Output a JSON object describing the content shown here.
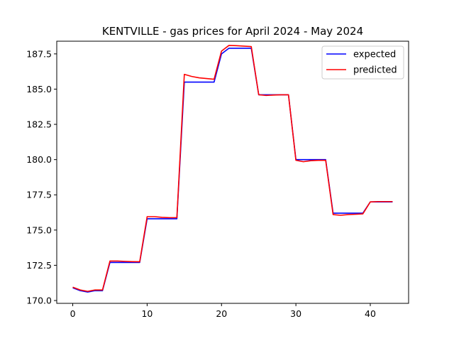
{
  "chart_data": {
    "type": "line",
    "title": "KENTVILLE - gas prices for April 2024 - May 2024",
    "xlabel": "",
    "ylabel": "",
    "xlim": [
      -2.15,
      45.15
    ],
    "ylim": [
      169.8,
      188.4
    ],
    "xticks": [
      0,
      10,
      20,
      30,
      40
    ],
    "yticks": [
      170.0,
      172.5,
      175.0,
      177.5,
      180.0,
      182.5,
      185.0,
      187.5
    ],
    "ytick_labels": [
      "170.0",
      "172.5",
      "175.0",
      "177.5",
      "180.0",
      "182.5",
      "185.0",
      "187.5"
    ],
    "grid": false,
    "legend": "top-right",
    "series": [
      {
        "name": "expected",
        "color": "#0000ff",
        "x": [
          0,
          1,
          2,
          3,
          4,
          5,
          6,
          7,
          8,
          9,
          10,
          11,
          12,
          13,
          14,
          15,
          16,
          17,
          18,
          19,
          20,
          21,
          22,
          23,
          24,
          25,
          26,
          27,
          28,
          29,
          30,
          31,
          32,
          33,
          34,
          35,
          36,
          37,
          38,
          39,
          40,
          41,
          42,
          43
        ],
        "values": [
          170.9,
          170.7,
          170.6,
          170.7,
          170.7,
          172.7,
          172.7,
          172.7,
          172.7,
          172.7,
          175.8,
          175.8,
          175.8,
          175.8,
          175.8,
          185.5,
          185.5,
          185.5,
          185.5,
          185.5,
          187.5,
          187.9,
          187.9,
          187.9,
          187.9,
          184.6,
          184.6,
          184.6,
          184.6,
          184.6,
          180.0,
          180.0,
          180.0,
          180.0,
          180.0,
          176.2,
          176.2,
          176.2,
          176.2,
          176.2,
          177.0,
          177.0,
          177.0,
          177.0
        ]
      },
      {
        "name": "predicted",
        "color": "#ff0000",
        "x": [
          0,
          1,
          2,
          3,
          4,
          5,
          6,
          7,
          8,
          9,
          10,
          11,
          12,
          13,
          14,
          15,
          16,
          17,
          18,
          19,
          20,
          21,
          22,
          23,
          24,
          25,
          26,
          27,
          28,
          29,
          30,
          31,
          32,
          33,
          34,
          35,
          36,
          37,
          38,
          39,
          40,
          41,
          42,
          43
        ],
        "values": [
          170.95,
          170.75,
          170.65,
          170.75,
          170.75,
          172.8,
          172.8,
          172.78,
          172.76,
          172.75,
          175.95,
          175.95,
          175.9,
          175.88,
          175.88,
          186.05,
          185.9,
          185.8,
          185.75,
          185.7,
          187.7,
          188.1,
          188.08,
          188.05,
          188.02,
          184.6,
          184.55,
          184.58,
          184.6,
          184.6,
          179.95,
          179.85,
          179.92,
          179.95,
          179.95,
          176.1,
          176.05,
          176.1,
          176.12,
          176.15,
          177.0,
          177.02,
          177.02,
          177.02
        ]
      }
    ]
  }
}
